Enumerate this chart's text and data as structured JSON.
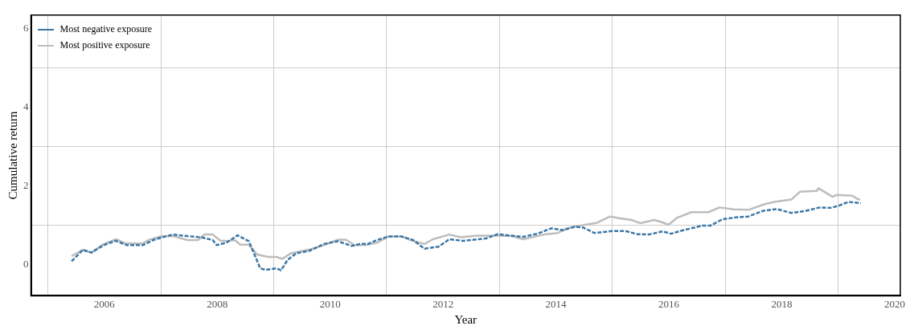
{
  "chart_data": {
    "type": "line",
    "xlabel": "Year",
    "ylabel": "Cumulative return",
    "xlim": [
      2004.7,
      2020.1
    ],
    "ylim": [
      -0.8,
      6.35
    ],
    "xticks": [
      {
        "value": 2005,
        "label": null
      },
      2006,
      {
        "value": 2007,
        "label": null
      },
      2008,
      {
        "value": 2009,
        "label": null
      },
      2010,
      {
        "value": 2011,
        "label": null
      },
      2012,
      {
        "value": 2013,
        "label": null
      },
      2014,
      {
        "value": 2015,
        "label": null
      },
      2016,
      {
        "value": 2017,
        "label": null
      },
      2018,
      {
        "value": 2019,
        "label": null
      },
      2020
    ],
    "yticks": [
      0,
      {
        "value": 1,
        "label": null
      },
      2,
      {
        "value": 3,
        "label": null
      },
      4,
      {
        "value": 5,
        "label": null
      },
      6
    ],
    "grid": true,
    "legend": "top left",
    "marker": "none",
    "series": [
      {
        "name": "Most negative exposure",
        "color": "#3b77a6",
        "line_style": "dashed",
        "x": [
          2005.42,
          2005.62,
          2005.77,
          2005.99,
          2006.2,
          2006.4,
          2006.68,
          2006.87,
          2007.07,
          2007.22,
          2007.47,
          2007.72,
          2007.92,
          2007.99,
          2008.16,
          2008.36,
          2008.56,
          2008.66,
          2008.76,
          2008.86,
          2009.05,
          2009.13,
          2009.25,
          2009.4,
          2009.64,
          2009.89,
          2010.14,
          2010.28,
          2010.38,
          2010.53,
          2010.67,
          2010.83,
          2011.03,
          2011.27,
          2011.47,
          2011.67,
          2011.92,
          2012.11,
          2012.36,
          2012.61,
          2012.76,
          2012.97,
          2013.22,
          2013.42,
          2013.67,
          2013.92,
          2014.13,
          2014.33,
          2014.48,
          2014.68,
          2014.99,
          2015.23,
          2015.44,
          2015.64,
          2015.89,
          2016.04,
          2016.2,
          2016.4,
          2016.6,
          2016.74,
          2016.95,
          2017.21,
          2017.41,
          2017.66,
          2017.91,
          2018.17,
          2018.42,
          2018.67,
          2018.87,
          2019.02,
          2019.18,
          2019.4
        ],
        "values": [
          0.08,
          0.37,
          0.3,
          0.49,
          0.6,
          0.49,
          0.49,
          0.62,
          0.71,
          0.76,
          0.72,
          0.69,
          0.62,
          0.49,
          0.55,
          0.74,
          0.59,
          0.25,
          -0.1,
          -0.14,
          -0.1,
          -0.15,
          0.12,
          0.28,
          0.35,
          0.52,
          0.59,
          0.52,
          0.47,
          0.52,
          0.52,
          0.62,
          0.71,
          0.71,
          0.62,
          0.4,
          0.45,
          0.64,
          0.6,
          0.64,
          0.66,
          0.77,
          0.73,
          0.7,
          0.78,
          0.92,
          0.87,
          0.96,
          0.94,
          0.8,
          0.85,
          0.85,
          0.77,
          0.76,
          0.84,
          0.78,
          0.85,
          0.92,
          0.99,
          0.99,
          1.15,
          1.2,
          1.22,
          1.36,
          1.41,
          1.31,
          1.36,
          1.45,
          1.44,
          1.5,
          1.59,
          1.56
        ]
      },
      {
        "name": "Most positive exposure",
        "color": "#bdbdbd",
        "line_style": "solid",
        "x": [
          2005.42,
          2005.62,
          2005.77,
          2005.99,
          2006.21,
          2006.38,
          2006.68,
          2006.78,
          2007.0,
          2007.22,
          2007.47,
          2007.66,
          2007.77,
          2007.92,
          2008.06,
          2008.21,
          2008.31,
          2008.41,
          2008.56,
          2008.71,
          2008.9,
          2009.05,
          2009.15,
          2009.3,
          2009.64,
          2009.89,
          2010.14,
          2010.28,
          2010.43,
          2010.63,
          2010.83,
          2011.03,
          2011.27,
          2011.42,
          2011.67,
          2011.82,
          2012.11,
          2012.31,
          2012.61,
          2012.97,
          2013.22,
          2013.42,
          2013.82,
          2014.03,
          2014.18,
          2014.43,
          2014.73,
          2014.96,
          2015.14,
          2015.34,
          2015.49,
          2015.74,
          2015.87,
          2015.99,
          2016.15,
          2016.4,
          2016.7,
          2016.9,
          2017.15,
          2017.41,
          2017.71,
          2017.91,
          2018.17,
          2018.32,
          2018.62,
          2018.65,
          2018.9,
          2018.97,
          2019.25,
          2019.35,
          2019.39
        ],
        "values": [
          0.21,
          0.37,
          0.3,
          0.52,
          0.64,
          0.53,
          0.53,
          0.62,
          0.71,
          0.72,
          0.62,
          0.62,
          0.76,
          0.76,
          0.6,
          0.6,
          0.62,
          0.5,
          0.5,
          0.25,
          0.19,
          0.19,
          0.14,
          0.28,
          0.38,
          0.49,
          0.63,
          0.63,
          0.49,
          0.49,
          0.55,
          0.71,
          0.71,
          0.62,
          0.52,
          0.64,
          0.76,
          0.69,
          0.73,
          0.73,
          0.72,
          0.64,
          0.77,
          0.8,
          0.91,
          0.99,
          1.06,
          1.22,
          1.17,
          1.13,
          1.05,
          1.13,
          1.08,
          1.01,
          1.19,
          1.33,
          1.33,
          1.45,
          1.4,
          1.39,
          1.54,
          1.6,
          1.65,
          1.85,
          1.87,
          1.94,
          1.72,
          1.77,
          1.75,
          1.66,
          1.65
        ]
      }
    ]
  }
}
